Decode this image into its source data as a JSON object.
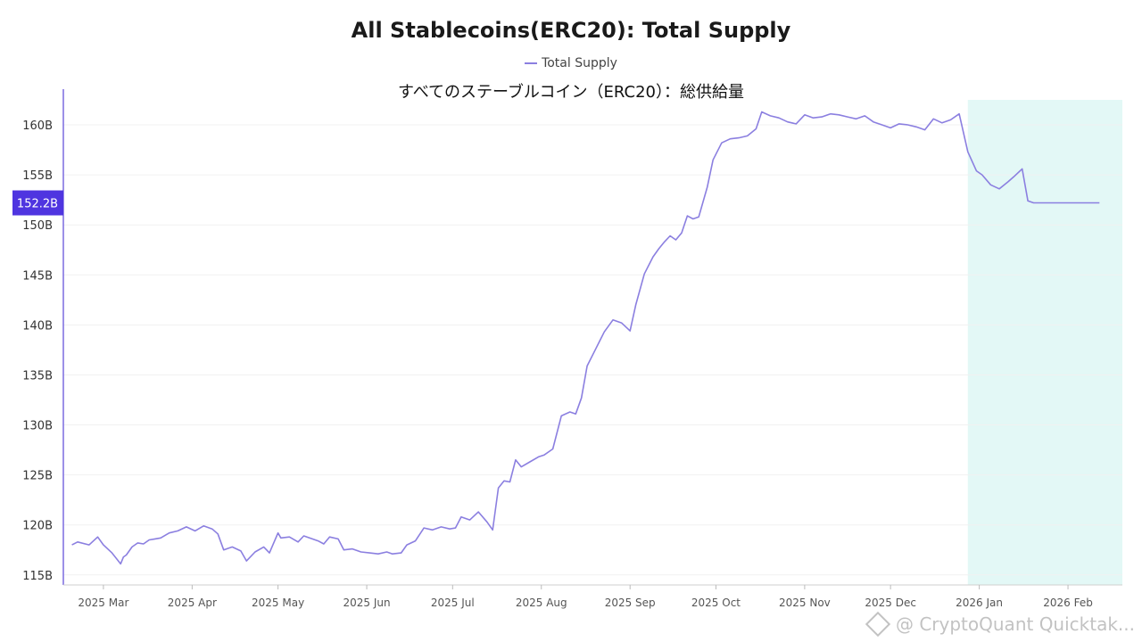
{
  "chart_data": {
    "type": "line",
    "title": "All Stablecoins(ERC20): Total Supply",
    "subtitle": "すべてのステーブルコイン（ERC20）：総供給量",
    "legend": [
      "Total Supply"
    ],
    "legend_position": "top-center",
    "unit": "B",
    "ylim": [
      114,
      162.5
    ],
    "y_ticks": [
      115,
      120,
      125,
      130,
      135,
      140,
      145,
      150,
      155,
      160
    ],
    "y_tick_labels": [
      "115B",
      "120B",
      "125B",
      "130B",
      "135B",
      "140B",
      "145B",
      "150B",
      "155B",
      "160B"
    ],
    "x_range": [
      "2025-02-15",
      "2026-02-20"
    ],
    "x_ticks": [
      "2025-03-01",
      "2025-04-01",
      "2025-05-01",
      "2025-06-01",
      "2025-07-01",
      "2025-08-01",
      "2025-09-01",
      "2025-10-01",
      "2025-11-01",
      "2025-12-01",
      "2026-01-01",
      "2026-02-01"
    ],
    "x_tick_labels": [
      "2025 Mar",
      "2025 Apr",
      "2025 May",
      "2025 Jun",
      "2025 Jul",
      "2025 Aug",
      "2025 Sep",
      "2025 Oct",
      "2025 Nov",
      "2025 Dec",
      "2026 Jan",
      "2026 Feb"
    ],
    "current_value_label": "152.2B",
    "current_value": 152.2,
    "highlight_range": [
      "2025-12-28",
      "2026-02-20"
    ],
    "grid": true,
    "series": [
      {
        "name": "Total Supply",
        "color": "#8b7fe0",
        "x": [
          "2025-02-18",
          "2025-02-20",
          "2025-02-24",
          "2025-02-27",
          "2025-03-01",
          "2025-03-04",
          "2025-03-07",
          "2025-03-08",
          "2025-03-09",
          "2025-03-11",
          "2025-03-13",
          "2025-03-15",
          "2025-03-17",
          "2025-03-19",
          "2025-03-21",
          "2025-03-24",
          "2025-03-27",
          "2025-03-30",
          "2025-04-02",
          "2025-04-05",
          "2025-04-08",
          "2025-04-10",
          "2025-04-12",
          "2025-04-15",
          "2025-04-18",
          "2025-04-20",
          "2025-04-23",
          "2025-04-26",
          "2025-04-28",
          "2025-05-01",
          "2025-05-02",
          "2025-05-05",
          "2025-05-08",
          "2025-05-10",
          "2025-05-12",
          "2025-05-15",
          "2025-05-17",
          "2025-05-19",
          "2025-05-22",
          "2025-05-24",
          "2025-05-27",
          "2025-05-30",
          "2025-06-02",
          "2025-06-05",
          "2025-06-08",
          "2025-06-10",
          "2025-06-13",
          "2025-06-15",
          "2025-06-18",
          "2025-06-21",
          "2025-06-24",
          "2025-06-27",
          "2025-06-30",
          "2025-07-02",
          "2025-07-04",
          "2025-07-07",
          "2025-07-10",
          "2025-07-13",
          "2025-07-15",
          "2025-07-17",
          "2025-07-19",
          "2025-07-21",
          "2025-07-23",
          "2025-07-25",
          "2025-07-28",
          "2025-07-31",
          "2025-08-02",
          "2025-08-05",
          "2025-08-08",
          "2025-08-11",
          "2025-08-13",
          "2025-08-15",
          "2025-08-17",
          "2025-08-20",
          "2025-08-23",
          "2025-08-26",
          "2025-08-29",
          "2025-09-01",
          "2025-09-03",
          "2025-09-06",
          "2025-09-09",
          "2025-09-11",
          "2025-09-13",
          "2025-09-15",
          "2025-09-17",
          "2025-09-19",
          "2025-09-21",
          "2025-09-23",
          "2025-09-25",
          "2025-09-28",
          "2025-09-30",
          "2025-10-03",
          "2025-10-06",
          "2025-10-09",
          "2025-10-12",
          "2025-10-15",
          "2025-10-17",
          "2025-10-20",
          "2025-10-23",
          "2025-10-26",
          "2025-10-29",
          "2025-11-01",
          "2025-11-04",
          "2025-11-07",
          "2025-11-10",
          "2025-11-13",
          "2025-11-16",
          "2025-11-19",
          "2025-11-22",
          "2025-11-25",
          "2025-11-28",
          "2025-12-01",
          "2025-12-04",
          "2025-12-07",
          "2025-12-10",
          "2025-12-13",
          "2025-12-16",
          "2025-12-19",
          "2025-12-22",
          "2025-12-25",
          "2025-12-28",
          "2025-12-31",
          "2026-01-02",
          "2026-01-05",
          "2026-01-08",
          "2026-01-11",
          "2026-01-13",
          "2026-01-16",
          "2026-01-18",
          "2026-01-20",
          "2026-01-22",
          "2026-01-25",
          "2026-01-28",
          "2026-01-31",
          "2026-02-03",
          "2026-02-06",
          "2026-02-08",
          "2026-02-10",
          "2026-02-12"
        ],
        "values": [
          118.0,
          118.3,
          118.0,
          118.8,
          118.0,
          117.2,
          116.1,
          116.8,
          117.0,
          117.8,
          118.2,
          118.1,
          118.5,
          118.6,
          118.7,
          119.2,
          119.4,
          119.8,
          119.4,
          119.9,
          119.6,
          119.1,
          117.5,
          117.8,
          117.4,
          116.4,
          117.3,
          117.8,
          117.2,
          119.2,
          118.7,
          118.8,
          118.3,
          118.9,
          118.7,
          118.4,
          118.1,
          118.8,
          118.6,
          117.5,
          117.6,
          117.3,
          117.2,
          117.1,
          117.3,
          117.1,
          117.2,
          118.0,
          118.4,
          119.7,
          119.5,
          119.8,
          119.6,
          119.7,
          120.8,
          120.5,
          121.3,
          120.3,
          119.5,
          123.7,
          124.4,
          124.3,
          126.5,
          125.8,
          126.3,
          126.8,
          127.0,
          127.6,
          130.9,
          131.3,
          131.1,
          132.7,
          135.9,
          137.6,
          139.3,
          140.5,
          140.2,
          139.4,
          142.0,
          145.1,
          146.8,
          147.6,
          148.3,
          148.9,
          148.5,
          149.2,
          150.9,
          150.6,
          150.8,
          153.8,
          156.5,
          158.2,
          158.6,
          158.7,
          158.9,
          159.6,
          161.3,
          160.9,
          160.7,
          160.3,
          160.1,
          161.0,
          160.7,
          160.8,
          161.1,
          161.0,
          160.8,
          160.6,
          160.9,
          160.3,
          160.0,
          159.7,
          160.1,
          160.0,
          159.8,
          159.5,
          160.6,
          160.2,
          160.5,
          161.1,
          157.3,
          155.4,
          155.0,
          154.0,
          153.6,
          154.3,
          154.8,
          155.6,
          152.4,
          152.2,
          152.2,
          152.2,
          152.2,
          152.2,
          152.2,
          152.2,
          152.2,
          152.2,
          152.2
        ]
      }
    ]
  },
  "watermark": "@ CryptoQuant Quicktak..."
}
